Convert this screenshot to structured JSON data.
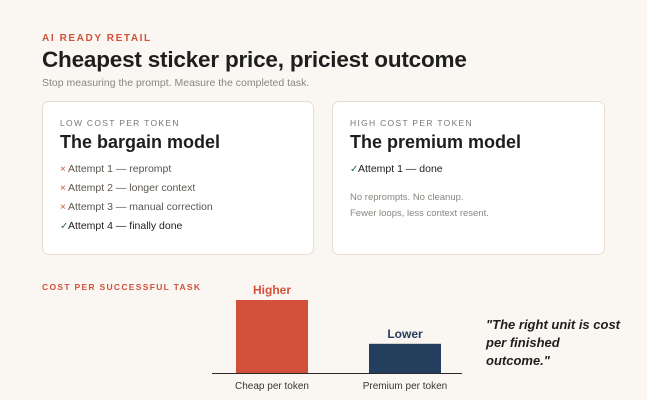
{
  "header": {
    "eyebrow": "AI READY RETAIL",
    "title": "Cheapest sticker price, priciest outcome",
    "subtitle": "Stop measuring the prompt. Measure the completed task."
  },
  "cards": {
    "bargain": {
      "kicker": "LOW COST PER TOKEN",
      "title": "The bargain model",
      "attempts": [
        {
          "mark": "×",
          "text": "Attempt 1 — reprompt"
        },
        {
          "mark": "×",
          "text": "Attempt 2 — longer context"
        },
        {
          "mark": "×",
          "text": "Attempt 3 — manual correction"
        },
        {
          "mark": "✓",
          "text": "Attempt 4 — finally done"
        }
      ]
    },
    "premium": {
      "kicker": "HIGH COST PER TOKEN",
      "title": "The premium model",
      "attempts": [
        {
          "mark": "✓",
          "text": "Attempt 1 — done"
        }
      ],
      "note_lines": [
        "No reprompts. No cleanup.",
        "Fewer loops, less context resent."
      ]
    }
  },
  "section_label": "COST PER SUCCESSFUL TASK",
  "quote": "\"The right unit is cost per finished outcome.\"",
  "colors": {
    "accent": "#d3503a",
    "navy": "#243f5e",
    "background": "#faf6f1"
  },
  "chart_data": {
    "type": "bar",
    "categories": [
      "Cheap per token",
      "Premium per token"
    ],
    "values": [
      100,
      40
    ],
    "data_labels": [
      "Higher",
      "Lower"
    ],
    "colors": [
      "#d3503a",
      "#243f5e"
    ],
    "ylim": [
      0,
      100
    ],
    "title": "",
    "xlabel": "",
    "ylabel": "",
    "grid": false
  }
}
